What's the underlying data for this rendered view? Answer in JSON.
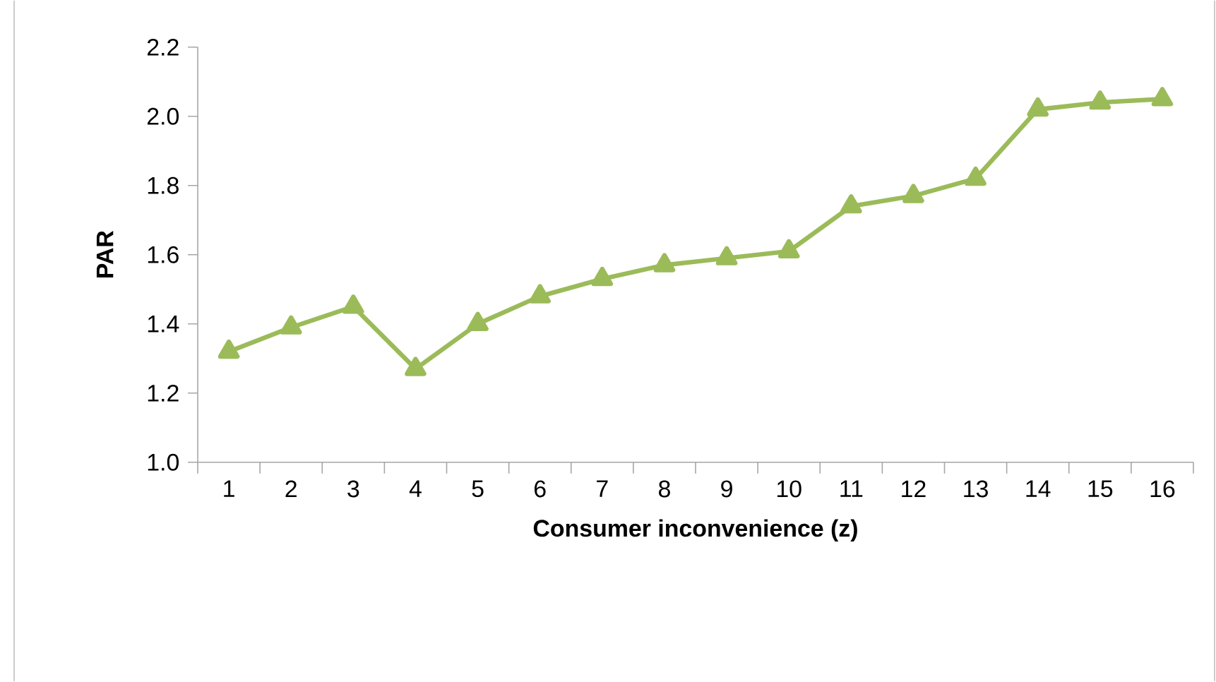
{
  "chart_data": {
    "type": "line",
    "xlabel": "Consumer inconvenience (z)",
    "ylabel": "PAR",
    "categories": [
      "1",
      "2",
      "3",
      "4",
      "5",
      "6",
      "7",
      "8",
      "9",
      "10",
      "11",
      "12",
      "13",
      "14",
      "15",
      "16"
    ],
    "series": [
      {
        "color": "#9bbb59",
        "values": [
          1.32,
          1.39,
          1.45,
          1.27,
          1.4,
          1.48,
          1.53,
          1.57,
          1.59,
          1.61,
          1.74,
          1.77,
          1.82,
          2.02,
          2.04,
          2.05
        ]
      }
    ],
    "ylim": [
      1.0,
      2.2
    ],
    "yticks": [
      {
        "value": 1.0,
        "label": "1.0"
      },
      {
        "value": 1.2,
        "label": "1.2"
      },
      {
        "value": 1.4,
        "label": "1.4"
      },
      {
        "value": 1.6,
        "label": "1.6"
      },
      {
        "value": 1.8,
        "label": "1.8"
      },
      {
        "value": 2.0,
        "label": "2.0"
      },
      {
        "value": 2.2,
        "label": "2.2"
      }
    ],
    "marker": "triangle",
    "line_style": "solid",
    "grid": false
  }
}
